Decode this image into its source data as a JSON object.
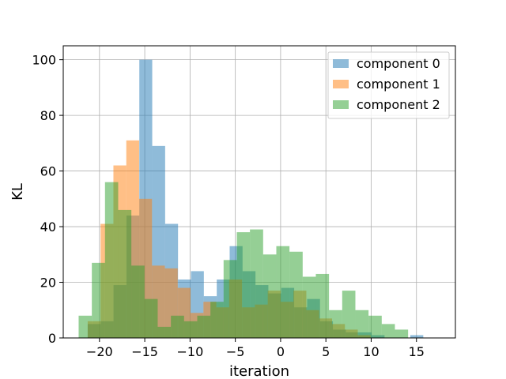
{
  "chart_data": {
    "type": "histogram",
    "title": "",
    "xlabel": "iteration",
    "ylabel": "KL",
    "xlim": [
      -24,
      19.3
    ],
    "ylim": [
      0,
      105
    ],
    "xticks": [
      -20,
      -15,
      -10,
      -5,
      0,
      5,
      10,
      15
    ],
    "xtick_labels": [
      "−20",
      "−15",
      "−10",
      "−5",
      "0",
      "5",
      "10",
      "15"
    ],
    "yticks": [
      0,
      20,
      40,
      60,
      80,
      100
    ],
    "ytick_labels": [
      "0",
      "20",
      "40",
      "60",
      "80",
      "100"
    ],
    "grid": true,
    "legend_position": "top-right",
    "alpha": 0.5,
    "series": [
      {
        "name": "component 0",
        "color": "#1f77b4",
        "bin_start": -21.3,
        "bin_width": 1.425,
        "counts": [
          5,
          6,
          19,
          44,
          100,
          69,
          41,
          21,
          24,
          15,
          21,
          33,
          24,
          19,
          16,
          18,
          11,
          14,
          6,
          3,
          2,
          2,
          1,
          0,
          0,
          1
        ]
      },
      {
        "name": "component 1",
        "color": "#ff7f0e",
        "bin_start": -21.3,
        "bin_width": 1.42,
        "counts": [
          6,
          41,
          62,
          71,
          50,
          26,
          25,
          18,
          9,
          13,
          11,
          21,
          11,
          12,
          17,
          13,
          17,
          10,
          7,
          5,
          3,
          1
        ]
      },
      {
        "name": "component 2",
        "color": "#2ca02c",
        "bin_start": -22.3,
        "bin_width": 1.455,
        "counts": [
          8,
          27,
          56,
          46,
          26,
          14,
          4,
          8,
          6,
          8,
          13,
          28,
          38,
          39,
          30,
          33,
          31,
          22,
          23,
          10,
          17,
          10,
          8,
          5,
          3
        ]
      }
    ]
  }
}
